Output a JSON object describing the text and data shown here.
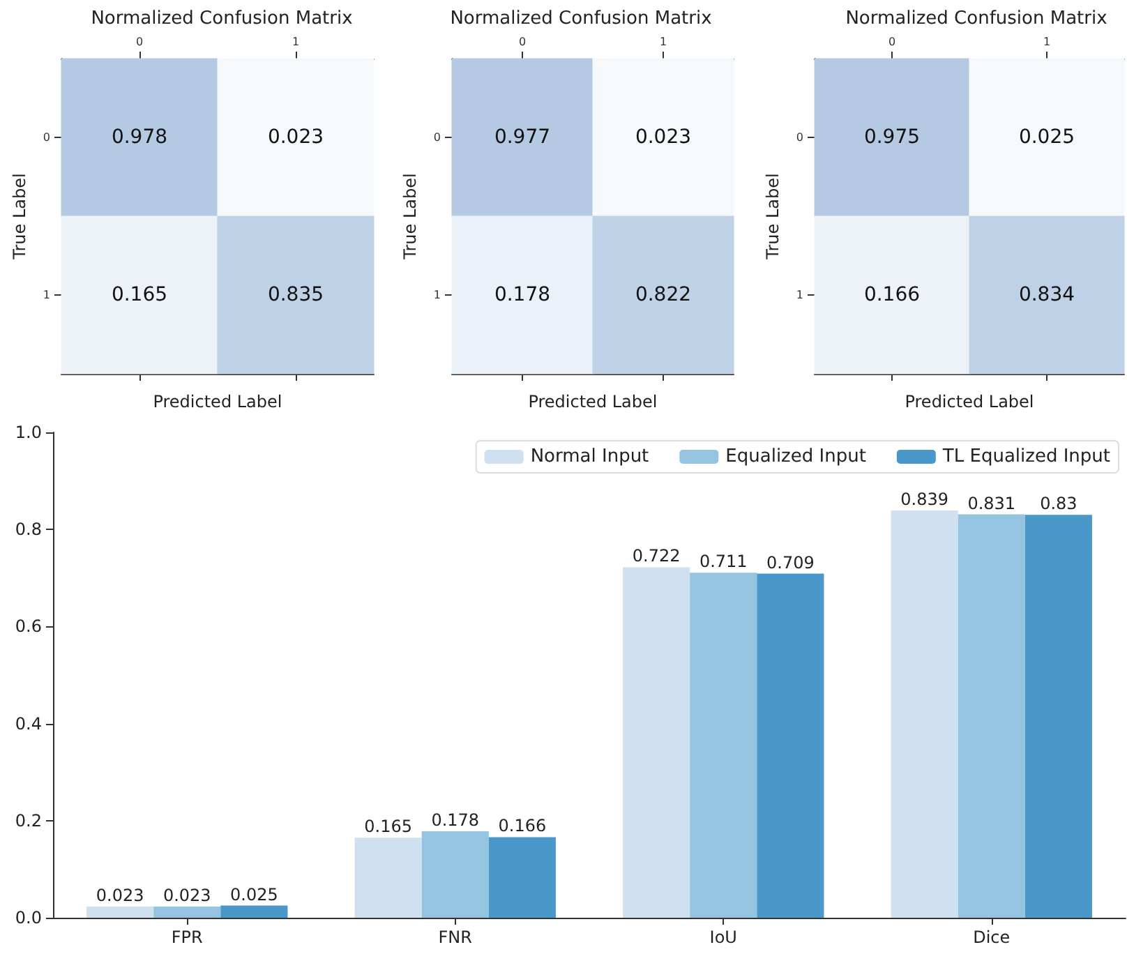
{
  "chart_data": [
    {
      "type": "heatmap",
      "title": "Normalized Confusion Matrix",
      "xlabel": "Predicted Label",
      "ylabel": "True Label",
      "categories": [
        "0",
        "1"
      ],
      "y_categories": [
        "0",
        "1"
      ],
      "cells": [
        [
          0.978,
          0.023
        ],
        [
          0.165,
          0.835
        ]
      ],
      "data_labels": true
    },
    {
      "type": "heatmap",
      "title": "Normalized Confusion Matrix",
      "xlabel": "Predicted Label",
      "ylabel": "True Label",
      "categories": [
        "0",
        "1"
      ],
      "y_categories": [
        "0",
        "1"
      ],
      "cells": [
        [
          0.977,
          0.023
        ],
        [
          0.178,
          0.822
        ]
      ],
      "data_labels": true
    },
    {
      "type": "heatmap",
      "title": "Normalized Confusion Matrix",
      "xlabel": "Predicted Label",
      "ylabel": "True Label",
      "categories": [
        "0",
        "1"
      ],
      "y_categories": [
        "0",
        "1"
      ],
      "cells": [
        [
          0.975,
          0.025
        ],
        [
          0.166,
          0.834
        ]
      ],
      "data_labels": true
    },
    {
      "type": "bar",
      "categories": [
        "FPR",
        "FNR",
        "IoU",
        "Dice"
      ],
      "series": [
        {
          "name": "Normal Input",
          "color": "#cfe0f0",
          "values": [
            0.023,
            0.165,
            0.722,
            0.839
          ]
        },
        {
          "name": "Equalized Input",
          "color": "#95c4e0",
          "values": [
            0.023,
            0.178,
            0.711,
            0.831
          ]
        },
        {
          "name": "TL Equalized Input",
          "color": "#4a98c9",
          "values": [
            0.025,
            0.166,
            0.709,
            0.83
          ]
        }
      ],
      "ylim": [
        0,
        1
      ],
      "yticks": [
        {
          "value": 0,
          "label": "0.0"
        },
        0.2,
        0.4,
        0.6,
        0.8,
        {
          "value": 1,
          "label": "1.0"
        }
      ],
      "legend": "top right",
      "data_labels": true,
      "grid": false
    }
  ]
}
